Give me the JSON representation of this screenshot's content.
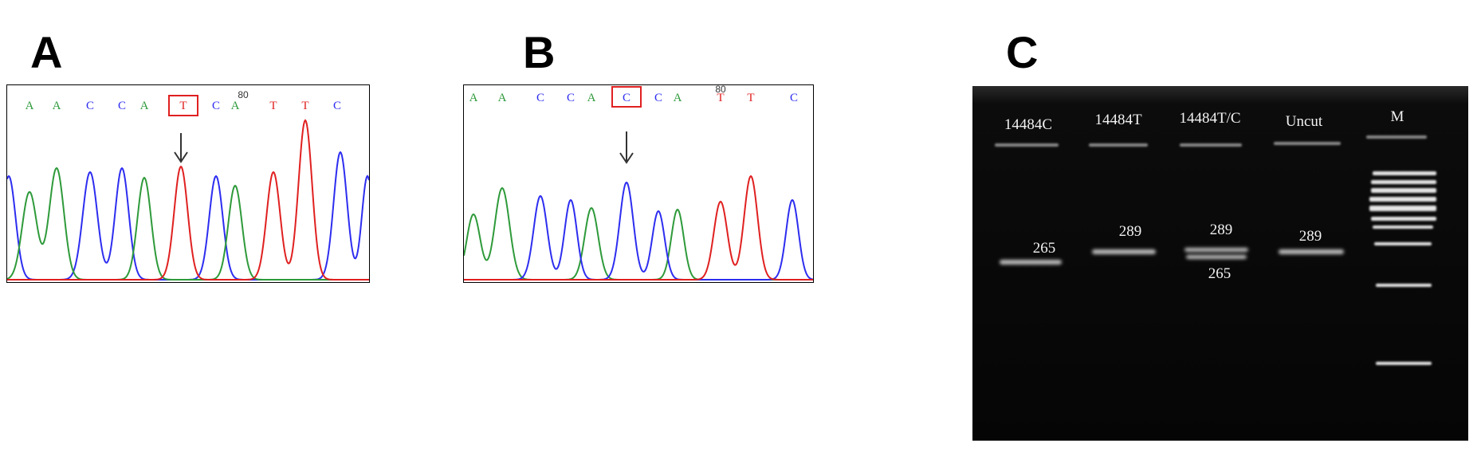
{
  "panels": {
    "A": {
      "label": "A",
      "bases": [
        "A",
        "A",
        "C",
        "C",
        "A",
        "T",
        "C",
        "A",
        "T",
        "T",
        "C"
      ],
      "boxed_index": 5,
      "position_label": "80",
      "position_over_index": 7
    },
    "B": {
      "label": "B",
      "bases": [
        "A",
        "A",
        "C",
        "C",
        "A",
        "C",
        "C",
        "A",
        "T",
        "T",
        "C"
      ],
      "boxed_index": 5,
      "position_label": "80",
      "position_over_index": 8
    },
    "C": {
      "label": "C",
      "lanes": [
        "14484C",
        "14484T",
        "14484T/C",
        "Uncut",
        "M"
      ],
      "band_labels": {
        "lane1": [
          "265"
        ],
        "lane2": [
          "289"
        ],
        "lane3": [
          "289",
          "265"
        ],
        "lane4": [
          "289"
        ]
      }
    }
  },
  "colors": {
    "A_base": "#2e9a3a",
    "C_base": "#2d2df0",
    "T_base": "#e02020",
    "box": "#e02020",
    "gel_bg": "#060606"
  }
}
